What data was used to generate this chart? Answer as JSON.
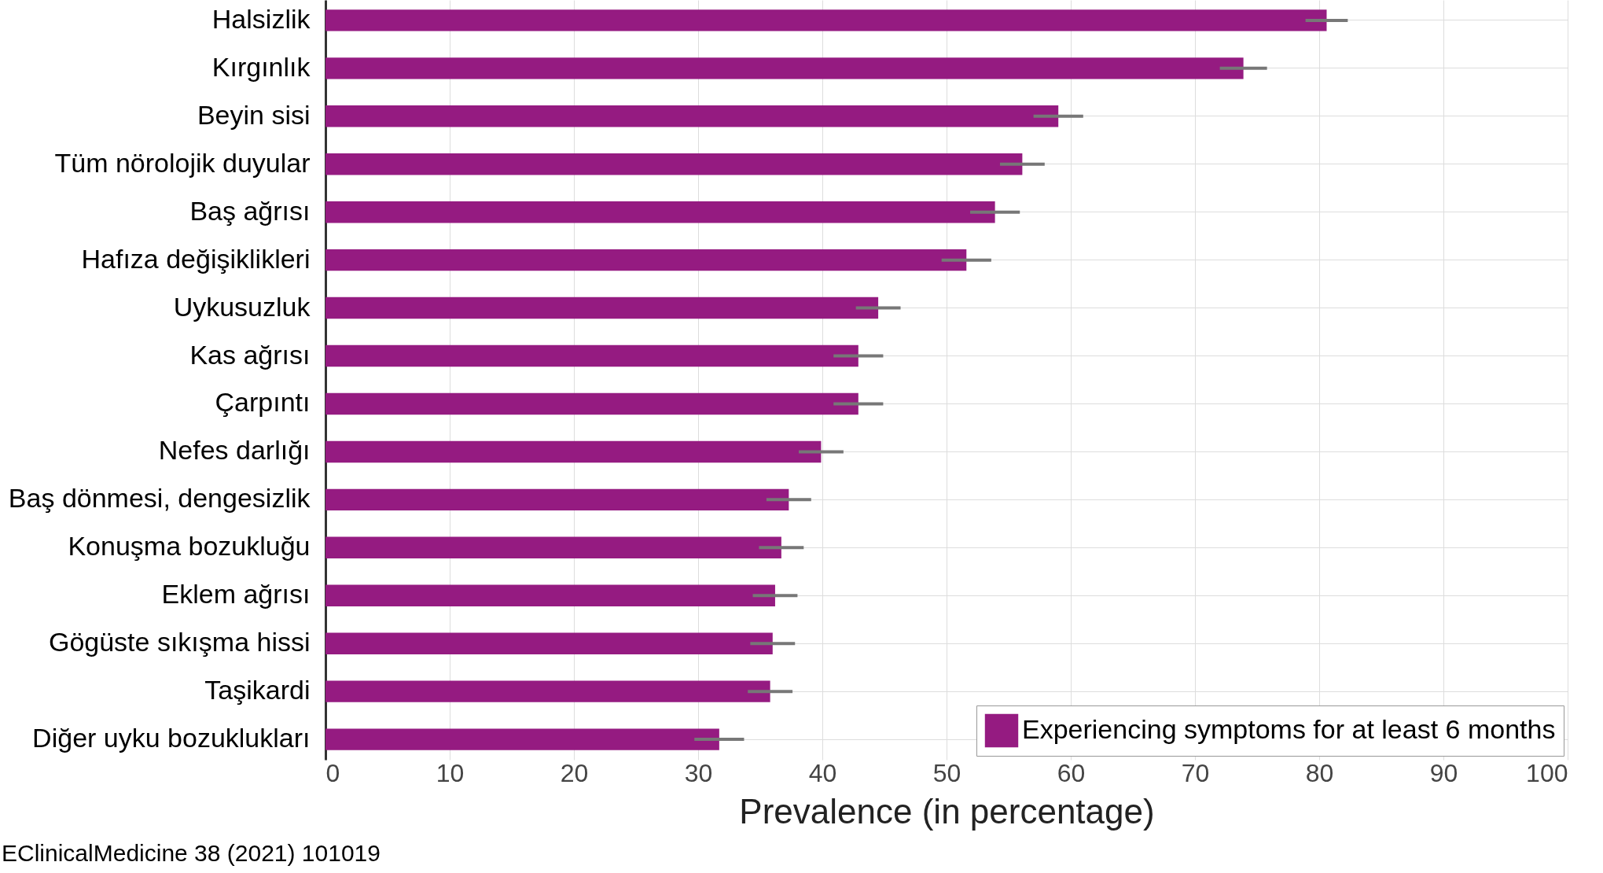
{
  "chart_data": {
    "type": "bar",
    "orientation": "horizontal",
    "xlabel": "Prevalence (in percentage)",
    "categories": [
      "Halsizlik",
      "Kırgınlık",
      "Beyin sisi",
      "Tüm nörolojik duyular",
      "Baş ağrısı",
      "Hafıza değişiklikleri",
      "Uykusuzluk",
      "Kas ağrısı",
      "Çarpıntı",
      "Nefes darlığı",
      "Baş dönmesi, dengesizlik",
      "Konuşma bozukluğu",
      "Eklem ağrısı",
      "Gögüste sıkışma hissi",
      "Taşikardi",
      "Diğer uyku bozuklukları"
    ],
    "series": [
      {
        "name": "Experiencing symptoms for at least 6 months",
        "color": "#951b81",
        "values": [
          80.6,
          73.9,
          59.0,
          56.1,
          53.9,
          51.6,
          44.5,
          42.9,
          42.9,
          39.9,
          37.3,
          36.7,
          36.2,
          36.0,
          35.8,
          31.7
        ],
        "errors": [
          1.7,
          1.9,
          2,
          1.8,
          2,
          2,
          1.8,
          2,
          2,
          1.8,
          1.8,
          1.8,
          1.8,
          1.8,
          1.8,
          2
        ]
      }
    ],
    "xlim": [
      0,
      100
    ],
    "xticks": [
      0,
      10,
      20,
      30,
      40,
      50,
      60,
      70,
      80,
      90,
      100
    ],
    "grid": true,
    "legend": "bottom right",
    "annotations": [
      "EClinicalMedicine 38 (2021) 101019"
    ]
  }
}
